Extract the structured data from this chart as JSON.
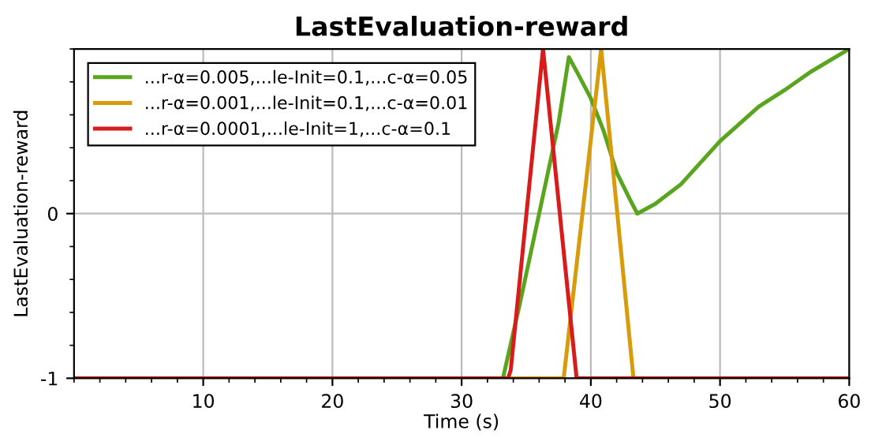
{
  "chart_data": {
    "type": "line",
    "title": "LastEvaluation-reward",
    "xlabel": "Time (s)",
    "ylabel": "LastEvaluation-reward",
    "xlim": [
      0,
      60
    ],
    "ylim": [
      -1,
      1
    ],
    "xticks": [
      10,
      20,
      30,
      40,
      50,
      60
    ],
    "yticks": [
      -1,
      0
    ],
    "grid": true,
    "legend": "top left",
    "line_style": "solid",
    "series": [
      {
        "name": "...r-α=0.005,...le-Init=0.1,...c-α=0.05",
        "color": "#5aa51e",
        "x": [
          0,
          33.2,
          34.5,
          36,
          37.5,
          38.3,
          39,
          40,
          41,
          42,
          43,
          43.6,
          45,
          47,
          50,
          53,
          55,
          57,
          60
        ],
        "values": [
          -1,
          -1,
          -0.55,
          0,
          0.55,
          0.95,
          0.85,
          0.7,
          0.5,
          0.25,
          0.09,
          0,
          0.06,
          0.18,
          0.44,
          0.65,
          0.75,
          0.86,
          1
        ]
      },
      {
        "name": "...r-α=0.001,...le-Init=0.1,...c-α=0.01",
        "color": "#d89b0a",
        "x": [
          0,
          37.9,
          40.8,
          43.3,
          60
        ],
        "values": [
          -1,
          -1,
          1,
          -1,
          -1
        ]
      },
      {
        "name": "...r-α=0.0001,...le-Init=1,...c-α=0.1",
        "color": "#d81b1b",
        "x": [
          0,
          33.6,
          33.8,
          36.3,
          38.9,
          60
        ],
        "values": [
          -1,
          -1,
          -0.95,
          1,
          -1,
          -1
        ]
      }
    ]
  }
}
